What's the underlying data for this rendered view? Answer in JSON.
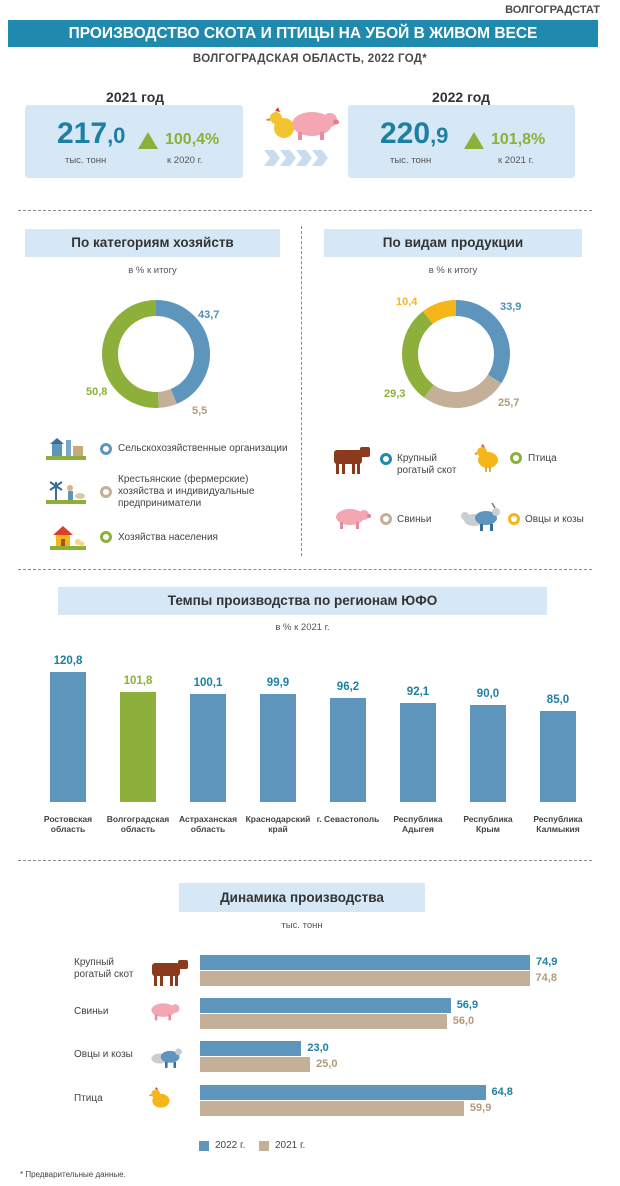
{
  "header": {
    "org": "ВОЛГОГРАДСТАТ",
    "title": "ПРОИЗВОДСТВО СКОТА И ПТИЦЫ НА УБОЙ В ЖИВОМ ВЕСЕ",
    "subtitle": "ВОЛГОГРАДСКАЯ  ОБЛАСТЬ,  2022 ГОД*"
  },
  "kpi": {
    "y2021": {
      "year_label": "2021 год",
      "value_int": "217",
      "value_dec": ",0",
      "unit": "тыс. тонн",
      "pct": "100,4%",
      "cmp": "к  2020 г."
    },
    "y2022": {
      "year_label": "2022 год",
      "value_int": "220",
      "value_dec": ",9",
      "unit": "тыс. тонн",
      "pct": "101,8%",
      "cmp": "к  2021 г."
    }
  },
  "colors": {
    "brand_blue": "#1f8aad",
    "bar_blue": "#5e95bd",
    "green": "#8cb03a",
    "tan": "#c4b098",
    "orange": "#f4b619",
    "panel": "#d6e8f5"
  },
  "chart_data": [
    {
      "type": "pie",
      "title": "По категориям хозяйств",
      "subtitle": "в % к итогу",
      "labels": [
        "Сельскохозяйственные организации",
        "Крестьянские (фермерские) хозяйства и индивидуальные предприниматели",
        "Хозяйства населения"
      ],
      "values": [
        43.7,
        5.5,
        50.8
      ],
      "value_labels": [
        "43,7",
        "5,5",
        "50,8"
      ],
      "colors": [
        "#5e95bd",
        "#c4b098",
        "#8cb03a"
      ],
      "icons": [
        "farm-buildings-icon",
        "farmer-windmill-icon",
        "house-chickens-icon"
      ]
    },
    {
      "type": "pie",
      "title": "По видам продукции",
      "subtitle": "в % к итогу",
      "labels": [
        "Крупный рогатый скот",
        "Свиньи",
        "Птица",
        "Овцы и козы"
      ],
      "values": [
        33.9,
        25.7,
        29.3,
        10.4
      ],
      "value_labels": [
        "33,9",
        "25,7",
        "29,3",
        "10,4"
      ],
      "colors": [
        "#5e95bd",
        "#c4b098",
        "#8cb03a",
        "#f4b619"
      ],
      "icons": [
        "cow-icon",
        "pig-icon",
        "chicken-icon",
        "sheep-goat-icon"
      ]
    },
    {
      "type": "bar",
      "title": "Темпы производства  по регионам ЮФО",
      "subtitle": "в % к 2021 г.",
      "categories": [
        "Ростовская область",
        "Волгоградская область",
        "Астраханская область",
        "Краснодарский край",
        "г. Севастополь",
        "Республика Адыгея",
        "Республика Крым",
        "Республика Калмыкия"
      ],
      "values": [
        120.8,
        101.8,
        100.1,
        99.9,
        96.2,
        92.1,
        90.0,
        85.0
      ],
      "value_labels": [
        "120,8",
        "101,8",
        "100,1",
        "99,9",
        "96,2",
        "92,1",
        "90,0",
        "85,0"
      ],
      "highlight_index": 1
    },
    {
      "type": "bar",
      "orientation": "horizontal",
      "title": "Динамика производства",
      "subtitle": "тыс.  тонн",
      "categories": [
        "Крупный рогатый скот",
        "Свиньи",
        "Овцы и козы",
        "Птица"
      ],
      "icons": [
        "cow-icon",
        "pig-icon",
        "sheep-goat-icon",
        "chicken-icon"
      ],
      "series": [
        {
          "name": "2022 г.",
          "values": [
            74.9,
            56.9,
            23.0,
            64.8
          ],
          "value_labels": [
            "74,9",
            "56,9",
            "23,0",
            "64,8"
          ],
          "color": "#5e95bd"
        },
        {
          "name": "2021 г.",
          "values": [
            74.8,
            56.0,
            25.0,
            59.9
          ],
          "value_labels": [
            "74,8",
            "56,0",
            "25,0",
            "59,9"
          ],
          "color": "#c4b098"
        }
      ]
    }
  ],
  "footnote": "* Предварительные данные."
}
